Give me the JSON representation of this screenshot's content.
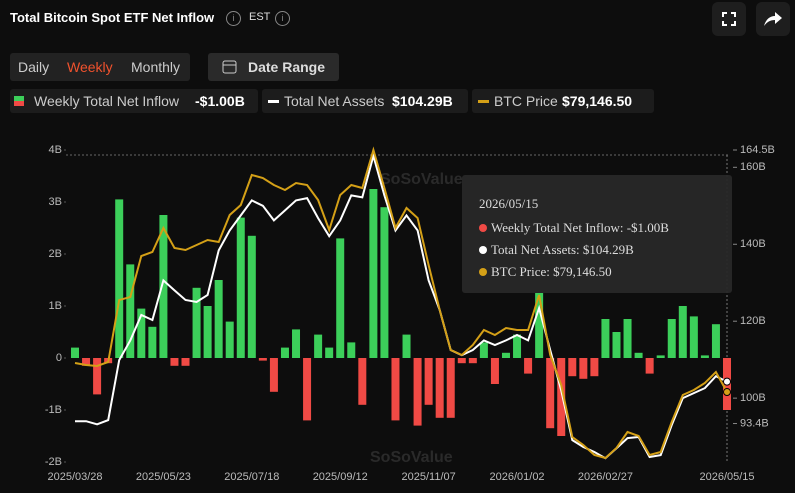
{
  "header": {
    "title": "Total Bitcoin Spot ETF Net Inflow",
    "timezone": "EST"
  },
  "tabs": [
    "Daily",
    "Weekly",
    "Monthly"
  ],
  "active_tab": "Weekly",
  "date_range": "Date Range",
  "legend": {
    "inflow": "Weekly Total Net Inflow",
    "inflow_value": "-$1.00B",
    "assets": "Total Net Assets",
    "assets_value": "$104.29B",
    "price": "BTC Price",
    "price_value": "$79,146.50"
  },
  "tooltip": {
    "date": "2026/05/15",
    "inflow": "Weekly Total Net Inflow: -$1.00B",
    "assets": "Total Net Assets: $104.29B",
    "price": "BTC Price: $79,146.50"
  },
  "watermark": "SoSoValue",
  "chart_data": {
    "type": "bar-line",
    "categories": [
      "2025/03/28",
      null,
      null,
      null,
      null,
      null,
      null,
      null,
      "2025/05/23",
      null,
      null,
      null,
      null,
      null,
      null,
      null,
      "2025/07/18",
      null,
      null,
      null,
      null,
      null,
      null,
      null,
      "2025/09/12",
      null,
      null,
      null,
      null,
      null,
      null,
      null,
      "2025/11/07",
      null,
      null,
      null,
      null,
      null,
      null,
      null,
      "2026/01/02",
      null,
      null,
      null,
      null,
      null,
      null,
      null,
      "2026/02/27",
      null,
      null,
      null,
      null,
      null,
      null,
      null,
      null,
      null,
      null,
      "2026/05/15"
    ],
    "series": [
      {
        "name": "Weekly Total Net Inflow",
        "type": "bar",
        "color": "#3ccf5a",
        "negative_color": "#f04a45",
        "values": [
          0.2,
          -0.15,
          -0.7,
          -0.1,
          3.05,
          1.8,
          0.95,
          0.6,
          2.75,
          -0.15,
          -0.15,
          1.35,
          1.0,
          1.5,
          0.7,
          2.7,
          2.35,
          -0.05,
          -0.65,
          0.2,
          0.55,
          -1.2,
          0.45,
          0.2,
          2.3,
          0.3,
          -0.9,
          3.25,
          2.9,
          -1.2,
          0.45,
          -1.3,
          -0.9,
          -1.15,
          -1.15,
          -0.1,
          -0.1,
          0.3,
          -0.5,
          0.1,
          0.45,
          -0.3,
          1.25,
          -1.35,
          -1.5,
          -0.35,
          -0.4,
          -0.35,
          0.75,
          0.5,
          0.75,
          0.1,
          -0.3,
          0.05,
          0.75,
          1.0,
          0.8,
          0.05,
          0.65,
          -1.0
        ]
      },
      {
        "name": "Total Net Assets",
        "type": "line",
        "axis": "y2",
        "color": "#ffffff",
        "values": [
          94.0,
          94.0,
          93.2,
          94.3,
          109.9,
          115.0,
          121.6,
          120.3,
          130.6,
          128.0,
          125.5,
          125.0,
          126.8,
          138.4,
          143.6,
          147.5,
          151.4,
          150.0,
          146.2,
          148.8,
          151.4,
          152.0,
          146.8,
          142.1,
          146.2,
          152.7,
          152.2,
          163.0,
          152.7,
          143.6,
          147.5,
          143.6,
          130.6,
          122.9,
          112.5,
          111.2,
          112.5,
          115.0,
          113.8,
          115.0,
          116.4,
          115.0,
          123.4,
          112.5,
          102.0,
          89.1,
          87.3,
          86.0,
          84.4,
          87.0,
          89.6,
          89.9,
          84.7,
          85.2,
          93.0,
          100.0,
          101.3,
          102.6,
          105.7,
          104.29
        ]
      },
      {
        "name": "BTC Price",
        "type": "line",
        "axis": "y3",
        "color": "#d4a017",
        "values": [
          84760,
          84370,
          84180,
          84960,
          96960,
          97540,
          105480,
          106250,
          110900,
          107030,
          106640,
          107610,
          108580,
          108190,
          113420,
          115350,
          121160,
          120580,
          119220,
          118260,
          119610,
          119220,
          116320,
          110510,
          117290,
          119220,
          118640,
          126000,
          118640,
          110900,
          114770,
          112840,
          103740,
          95020,
          87280,
          86310,
          88250,
          91150,
          90180,
          91540,
          91150,
          91150,
          97930,
          86310,
          80500,
          70440,
          68890,
          66950,
          66370,
          68310,
          71400,
          70630,
          66950,
          67530,
          73340,
          78570,
          79540,
          80890,
          83020,
          79146.5
        ]
      }
    ],
    "ylim": [
      -2,
      4
    ],
    "yticks": [
      {
        "value": -2,
        "label": "-2B"
      },
      {
        "value": -1,
        "label": "-1B"
      },
      0,
      {
        "value": 1,
        "label": "1B"
      },
      {
        "value": 2,
        "label": "2B"
      },
      {
        "value": 3,
        "label": "3B"
      },
      {
        "value": 4,
        "label": "4B"
      }
    ],
    "y2lim": [
      83.4,
      164.5
    ],
    "y2ticks": [
      {
        "value": 93.4,
        "label": "93.4B"
      },
      {
        "value": 100,
        "label": "100B"
      },
      {
        "value": 120,
        "label": "120B"
      },
      {
        "value": 140,
        "label": "140B"
      },
      {
        "value": 160,
        "label": "160B"
      },
      {
        "value": 164.5,
        "label": "164.5B"
      }
    ],
    "y3lim": [
      65600,
      126000
    ]
  }
}
